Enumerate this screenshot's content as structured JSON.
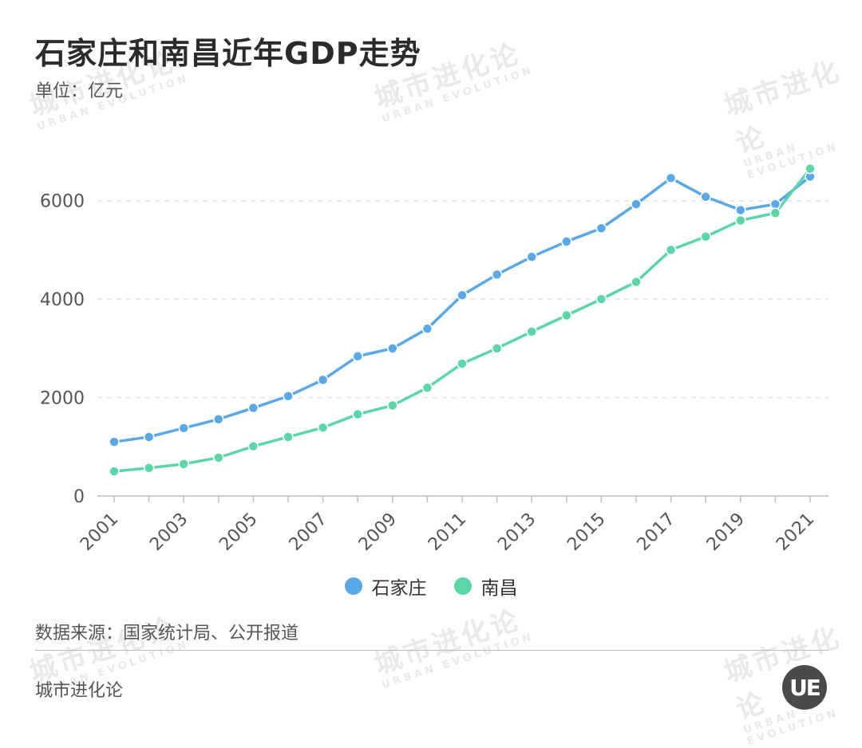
{
  "header": {
    "title": "石家庄和南昌近年GDP走势",
    "unit": "单位：亿元"
  },
  "watermark": {
    "text": "城市进化论",
    "sub": "URBAN EVOLUTION"
  },
  "chart_data": {
    "type": "line",
    "title": "石家庄和南昌近年GDP走势",
    "xlabel": "",
    "ylabel": "亿元",
    "ylim": [
      0,
      7000
    ],
    "yticks": [
      0,
      2000,
      4000,
      6000
    ],
    "x": [
      2001,
      2002,
      2003,
      2004,
      2005,
      2006,
      2007,
      2008,
      2009,
      2010,
      2011,
      2012,
      2013,
      2014,
      2015,
      2016,
      2017,
      2018,
      2019,
      2020,
      2021
    ],
    "xtick_labels": [
      "2001",
      "2003",
      "2005",
      "2007",
      "2009",
      "2011",
      "2013",
      "2015",
      "2017",
      "2019",
      "2021"
    ],
    "grid": "horizontal-dashed",
    "legend_position": "bottom-center",
    "series": [
      {
        "name": "石家庄",
        "color": "#5aa9e6",
        "values": [
          1100,
          1200,
          1380,
          1560,
          1790,
          2030,
          2360,
          2840,
          3000,
          3400,
          4080,
          4500,
          4860,
          5170,
          5440,
          5930,
          6460,
          6080,
          5810,
          5930,
          6490
        ]
      },
      {
        "name": "南昌",
        "color": "#5cd6a8",
        "values": [
          500,
          570,
          650,
          780,
          1010,
          1200,
          1390,
          1660,
          1840,
          2200,
          2690,
          3000,
          3340,
          3670,
          4000,
          4350,
          5000,
          5270,
          5600,
          5750,
          6650
        ]
      }
    ]
  },
  "legend": {
    "items": [
      {
        "label": "石家庄",
        "color": "#5aa9e6"
      },
      {
        "label": "南昌",
        "color": "#5cd6a8"
      }
    ]
  },
  "footer": {
    "source": "数据来源：国家统计局、公开报道",
    "brand": "城市进化论",
    "logo_text": "UE"
  }
}
